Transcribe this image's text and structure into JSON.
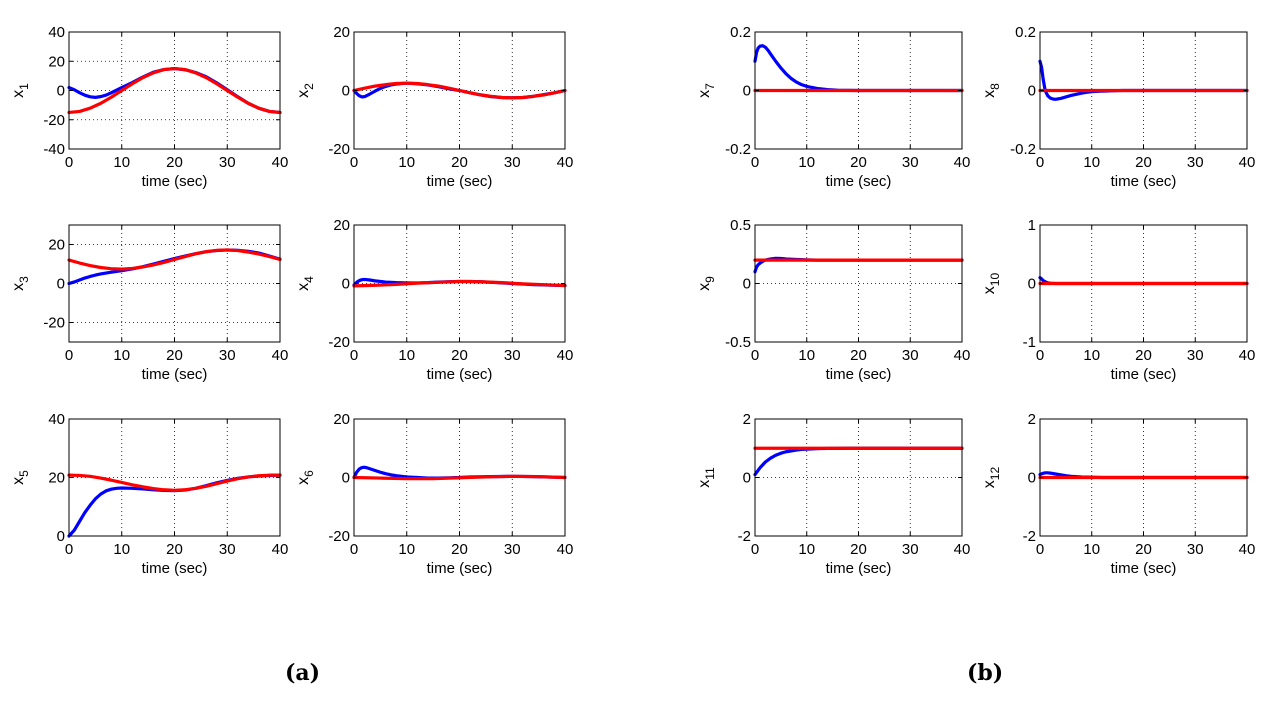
{
  "panels": [
    {
      "label": "(a)"
    },
    {
      "label": "(b)"
    }
  ],
  "colors": {
    "blue": "#0000ff",
    "red": "#ff0000",
    "grid": "#000000"
  },
  "chart_data": [
    {
      "type": "line",
      "variable": "x",
      "subscript": "1",
      "xlabel": "time (sec)",
      "xlim": [
        0,
        40
      ],
      "xticks": [
        0,
        10,
        20,
        30,
        40
      ],
      "ylim": [
        -40,
        40
      ],
      "yticks": [
        -40,
        -20,
        0,
        20,
        40
      ],
      "grid": true,
      "series": [
        {
          "color": "blue",
          "x": [
            0,
            1,
            2,
            3,
            4,
            5,
            6,
            7,
            8,
            9,
            10,
            12,
            14,
            16,
            18,
            20,
            22,
            24,
            26,
            28,
            30,
            32,
            34,
            36,
            38,
            40
          ],
          "y": [
            2,
            0.5,
            -1.5,
            -3.2,
            -4.3,
            -4.7,
            -4.2,
            -3.2,
            -1.6,
            0.2,
            2,
            5.4,
            9.2,
            12.5,
            14.3,
            15,
            14.2,
            12.3,
            9.4,
            5.2,
            0.5,
            -4.3,
            -8.8,
            -12.2,
            -14.3,
            -15
          ]
        },
        {
          "color": "red",
          "x": [
            0,
            2,
            4,
            6,
            8,
            10,
            12,
            14,
            16,
            18,
            20,
            22,
            24,
            26,
            28,
            30,
            32,
            34,
            36,
            38,
            40
          ],
          "y": [
            -15,
            -14.3,
            -12.1,
            -8.8,
            -4.6,
            0,
            4.6,
            8.8,
            12.1,
            14.3,
            15,
            14.3,
            12.1,
            8.8,
            4.6,
            0,
            -4.6,
            -8.8,
            -12.1,
            -14.3,
            -15
          ]
        }
      ]
    },
    {
      "type": "line",
      "variable": "x",
      "subscript": "2",
      "xlabel": "time (sec)",
      "xlim": [
        0,
        40
      ],
      "xticks": [
        0,
        10,
        20,
        30,
        40
      ],
      "ylim": [
        -20,
        20
      ],
      "yticks": [
        -20,
        0,
        20
      ],
      "grid": true,
      "series": [
        {
          "color": "blue",
          "x": [
            0,
            0.5,
            1,
            1.5,
            2,
            3,
            4,
            5,
            6,
            7,
            8,
            9,
            10,
            12,
            14,
            16,
            18,
            20,
            22,
            24,
            26,
            28,
            30,
            32,
            34,
            36,
            38,
            40
          ],
          "y": [
            0,
            -1,
            -1.8,
            -2.2,
            -2.1,
            -1.2,
            -0.2,
            0.7,
            1.4,
            1.9,
            2.2,
            2.4,
            2.5,
            2.3,
            1.9,
            1.3,
            0.6,
            0,
            -0.8,
            -1.5,
            -2.1,
            -2.4,
            -2.5,
            -2.4,
            -2,
            -1.4,
            -0.8,
            0
          ]
        },
        {
          "color": "red",
          "x": [
            0,
            2,
            4,
            6,
            8,
            10,
            12,
            14,
            16,
            18,
            20,
            22,
            24,
            26,
            28,
            30,
            32,
            34,
            36,
            38,
            40
          ],
          "y": [
            0,
            0.8,
            1.5,
            2,
            2.4,
            2.5,
            2.4,
            2,
            1.5,
            0.8,
            0,
            -0.8,
            -1.5,
            -2,
            -2.4,
            -2.5,
            -2.4,
            -2,
            -1.5,
            -0.8,
            0
          ]
        }
      ]
    },
    {
      "type": "line",
      "variable": "x",
      "subscript": "3",
      "xlabel": "time (sec)",
      "xlim": [
        0,
        40
      ],
      "xticks": [
        0,
        10,
        20,
        30,
        40
      ],
      "ylim": [
        -30,
        30
      ],
      "yticks": [
        -20,
        0,
        20
      ],
      "grid": true,
      "series": [
        {
          "color": "blue",
          "x": [
            0,
            1,
            2,
            3,
            4,
            5,
            6,
            8,
            10,
            12,
            14,
            16,
            18,
            20,
            22,
            24,
            26,
            28,
            30,
            32,
            34,
            36,
            38,
            40
          ],
          "y": [
            0,
            0.8,
            1.8,
            2.8,
            3.6,
            4.3,
            4.9,
            5.8,
            6.6,
            7.5,
            8.6,
            10,
            11.4,
            12.8,
            14.1,
            15.3,
            16.3,
            16.9,
            17.2,
            17,
            16.5,
            15.6,
            14.1,
            12.5
          ]
        },
        {
          "color": "red",
          "x": [
            0,
            2,
            4,
            6,
            8,
            10,
            12,
            14,
            16,
            18,
            20,
            22,
            24,
            26,
            28,
            30,
            32,
            34,
            36,
            38,
            40
          ],
          "y": [
            12,
            10.5,
            9.2,
            8.2,
            7.6,
            7.4,
            7.7,
            8.5,
            9.5,
            10.8,
            12.3,
            13.8,
            15.2,
            16.3,
            17,
            17.2,
            16.9,
            16.1,
            15.1,
            13.8,
            12.3
          ]
        }
      ]
    },
    {
      "type": "line",
      "variable": "x",
      "subscript": "4",
      "xlabel": "time (sec)",
      "xlim": [
        0,
        40
      ],
      "xticks": [
        0,
        10,
        20,
        30,
        40
      ],
      "ylim": [
        -20,
        20
      ],
      "yticks": [
        -20,
        0,
        20
      ],
      "grid": true,
      "series": [
        {
          "color": "blue",
          "x": [
            0,
            0.5,
            1,
            1.5,
            2,
            3,
            4,
            5,
            6,
            7,
            8,
            10,
            12,
            14,
            16,
            18,
            20,
            22,
            24,
            26,
            28,
            30,
            32,
            34,
            36,
            38,
            40
          ],
          "y": [
            -0.5,
            0.4,
            1,
            1.3,
            1.4,
            1.2,
            0.9,
            0.7,
            0.5,
            0.4,
            0.3,
            0.2,
            0.2,
            0.3,
            0.5,
            0.6,
            0.7,
            0.7,
            0.6,
            0.4,
            0.2,
            0,
            -0.2,
            -0.4,
            -0.5,
            -0.6,
            -0.7
          ]
        },
        {
          "color": "red",
          "x": [
            0,
            4,
            8,
            12,
            16,
            20,
            24,
            28,
            32,
            36,
            40
          ],
          "y": [
            -0.8,
            -0.6,
            -0.3,
            0.1,
            0.4,
            0.7,
            0.6,
            0.3,
            -0.1,
            -0.4,
            -0.7
          ]
        }
      ]
    },
    {
      "type": "line",
      "variable": "x",
      "subscript": "5",
      "xlabel": "time (sec)",
      "xlim": [
        0,
        40
      ],
      "xticks": [
        0,
        10,
        20,
        30,
        40
      ],
      "ylim": [
        0,
        40
      ],
      "yticks": [
        0,
        20,
        40
      ],
      "grid": true,
      "series": [
        {
          "color": "blue",
          "x": [
            0,
            1,
            2,
            3,
            4,
            5,
            6,
            7,
            8,
            9,
            10,
            12,
            14,
            16,
            18,
            20,
            22,
            24,
            26,
            28,
            30,
            32,
            34,
            36,
            38,
            40
          ],
          "y": [
            0,
            2,
            5,
            8,
            10.5,
            12.7,
            14.3,
            15.4,
            16,
            16.3,
            16.4,
            16.3,
            16.1,
            15.8,
            15.6,
            15.5,
            15.7,
            16.3,
            17.2,
            18.2,
            19,
            19.7,
            20.2,
            20.5,
            20.7,
            20.8
          ]
        },
        {
          "color": "red",
          "x": [
            0,
            2,
            4,
            6,
            8,
            10,
            12,
            14,
            16,
            18,
            20,
            22,
            24,
            26,
            28,
            30,
            32,
            34,
            36,
            38,
            40
          ],
          "y": [
            20.8,
            20.7,
            20.4,
            19.8,
            19.1,
            18.3,
            17.5,
            16.8,
            16.2,
            15.8,
            15.6,
            15.8,
            16.3,
            17,
            17.9,
            18.8,
            19.6,
            20.2,
            20.6,
            20.8,
            20.8
          ]
        }
      ]
    },
    {
      "type": "line",
      "variable": "x",
      "subscript": "6",
      "xlabel": "time (sec)",
      "xlim": [
        0,
        40
      ],
      "xticks": [
        0,
        10,
        20,
        30,
        40
      ],
      "ylim": [
        -20,
        20
      ],
      "yticks": [
        -20,
        0,
        20
      ],
      "grid": true,
      "series": [
        {
          "color": "blue",
          "x": [
            0,
            0.5,
            1,
            1.5,
            2,
            2.5,
            3,
            4,
            5,
            6,
            7,
            8,
            9,
            10,
            12,
            14,
            16,
            18,
            20,
            22,
            26,
            30,
            34,
            38,
            40
          ],
          "y": [
            0,
            1.8,
            2.9,
            3.4,
            3.5,
            3.3,
            3,
            2.4,
            1.8,
            1.3,
            0.9,
            0.6,
            0.4,
            0.2,
            0,
            -0.2,
            -0.2,
            -0.1,
            0,
            0.2,
            0.3,
            0.4,
            0.3,
            0.1,
            0
          ]
        },
        {
          "color": "red",
          "x": [
            0,
            5,
            10,
            15,
            20,
            25,
            30,
            35,
            40
          ],
          "y": [
            0,
            -0.2,
            -0.4,
            -0.4,
            -0.1,
            0.2,
            0.4,
            0.3,
            0
          ]
        }
      ]
    },
    {
      "type": "line",
      "variable": "x",
      "subscript": "7",
      "xlabel": "time (sec)",
      "xlim": [
        0,
        40
      ],
      "xticks": [
        0,
        10,
        20,
        30,
        40
      ],
      "ylim": [
        -0.2,
        0.2
      ],
      "yticks": [
        -0.2,
        0,
        0.2
      ],
      "grid": true,
      "series": [
        {
          "color": "blue",
          "x": [
            0,
            0.3,
            0.6,
            1,
            1.5,
            2,
            2.5,
            3,
            4,
            5,
            6,
            7,
            8,
            9,
            10,
            12,
            14,
            16,
            18,
            20,
            25,
            30,
            40
          ],
          "y": [
            0.1,
            0.13,
            0.145,
            0.152,
            0.153,
            0.148,
            0.138,
            0.125,
            0.1,
            0.077,
            0.057,
            0.041,
            0.029,
            0.02,
            0.014,
            0.007,
            0.003,
            0.001,
            0.0005,
            0,
            0,
            0,
            0
          ]
        },
        {
          "color": "red",
          "x": [
            0,
            40
          ],
          "y": [
            0,
            0
          ]
        }
      ]
    },
    {
      "type": "line",
      "variable": "x",
      "subscript": "8",
      "xlabel": "time (sec)",
      "xlim": [
        0,
        40
      ],
      "xticks": [
        0,
        10,
        20,
        30,
        40
      ],
      "ylim": [
        -0.2,
        0.2
      ],
      "yticks": [
        -0.2,
        0,
        0.2
      ],
      "grid": true,
      "series": [
        {
          "color": "blue",
          "x": [
            0,
            0.3,
            0.6,
            1,
            1.5,
            2,
            2.5,
            3,
            4,
            5,
            6,
            7,
            8,
            9,
            10,
            12,
            14,
            16,
            20,
            40
          ],
          "y": [
            0.1,
            0.08,
            0.04,
            0,
            -0.018,
            -0.026,
            -0.029,
            -0.03,
            -0.027,
            -0.022,
            -0.017,
            -0.013,
            -0.009,
            -0.006,
            -0.004,
            -0.002,
            -0.001,
            0,
            0,
            0
          ]
        },
        {
          "color": "red",
          "x": [
            0,
            40
          ],
          "y": [
            0,
            0
          ]
        }
      ]
    },
    {
      "type": "line",
      "variable": "x",
      "subscript": "9",
      "xlabel": "time (sec)",
      "xlim": [
        0,
        40
      ],
      "xticks": [
        0,
        10,
        20,
        30,
        40
      ],
      "ylim": [
        -0.5,
        0.5
      ],
      "yticks": [
        -0.5,
        0,
        0.5
      ],
      "grid": true,
      "series": [
        {
          "color": "blue",
          "x": [
            0,
            0.3,
            0.6,
            1,
            1.5,
            2,
            3,
            4,
            5,
            6,
            8,
            10,
            12,
            15,
            20,
            40
          ],
          "y": [
            0.1,
            0.14,
            0.16,
            0.175,
            0.19,
            0.2,
            0.21,
            0.215,
            0.214,
            0.21,
            0.205,
            0.202,
            0.2,
            0.2,
            0.2,
            0.2
          ]
        },
        {
          "color": "red",
          "x": [
            0,
            40
          ],
          "y": [
            0.2,
            0.2
          ]
        }
      ]
    },
    {
      "type": "line",
      "variable": "x",
      "subscript": "10",
      "xlabel": "time (sec)",
      "xlim": [
        0,
        40
      ],
      "xticks": [
        0,
        10,
        20,
        30,
        40
      ],
      "ylim": [
        -1,
        1
      ],
      "yticks": [
        -1,
        0,
        1
      ],
      "grid": true,
      "series": [
        {
          "color": "blue",
          "x": [
            0,
            0.3,
            0.6,
            1,
            1.5,
            2,
            3,
            4,
            5,
            40
          ],
          "y": [
            0.1,
            0.08,
            0.05,
            0.03,
            0.012,
            0.005,
            0,
            0,
            0,
            0
          ]
        },
        {
          "color": "red",
          "x": [
            0,
            40
          ],
          "y": [
            0,
            0
          ]
        }
      ]
    },
    {
      "type": "line",
      "variable": "x",
      "subscript": "11",
      "xlabel": "time (sec)",
      "xlim": [
        0,
        40
      ],
      "xticks": [
        0,
        10,
        20,
        30,
        40
      ],
      "ylim": [
        -2,
        2
      ],
      "yticks": [
        -2,
        0,
        2
      ],
      "grid": true,
      "series": [
        {
          "color": "blue",
          "x": [
            0,
            1,
            2,
            3,
            4,
            5,
            6,
            7,
            8,
            9,
            10,
            12,
            14,
            16,
            18,
            20,
            25,
            40
          ],
          "y": [
            0.1,
            0.34,
            0.53,
            0.66,
            0.76,
            0.83,
            0.88,
            0.91,
            0.94,
            0.96,
            0.97,
            0.985,
            0.993,
            0.997,
            0.999,
            1,
            1,
            1
          ]
        },
        {
          "color": "red",
          "x": [
            0,
            40
          ],
          "y": [
            1,
            1
          ]
        }
      ]
    },
    {
      "type": "line",
      "variable": "x",
      "subscript": "12",
      "xlabel": "time (sec)",
      "xlim": [
        0,
        40
      ],
      "xticks": [
        0,
        10,
        20,
        30,
        40
      ],
      "ylim": [
        -2,
        2
      ],
      "yticks": [
        -2,
        0,
        2
      ],
      "grid": true,
      "series": [
        {
          "color": "blue",
          "x": [
            0,
            0.5,
            1,
            1.5,
            2,
            3,
            4,
            5,
            6,
            8,
            10,
            12,
            40
          ],
          "y": [
            0.1,
            0.14,
            0.16,
            0.16,
            0.15,
            0.12,
            0.09,
            0.06,
            0.04,
            0.02,
            0.01,
            0,
            0
          ]
        },
        {
          "color": "red",
          "x": [
            0,
            40
          ],
          "y": [
            0,
            0
          ]
        }
      ]
    }
  ]
}
